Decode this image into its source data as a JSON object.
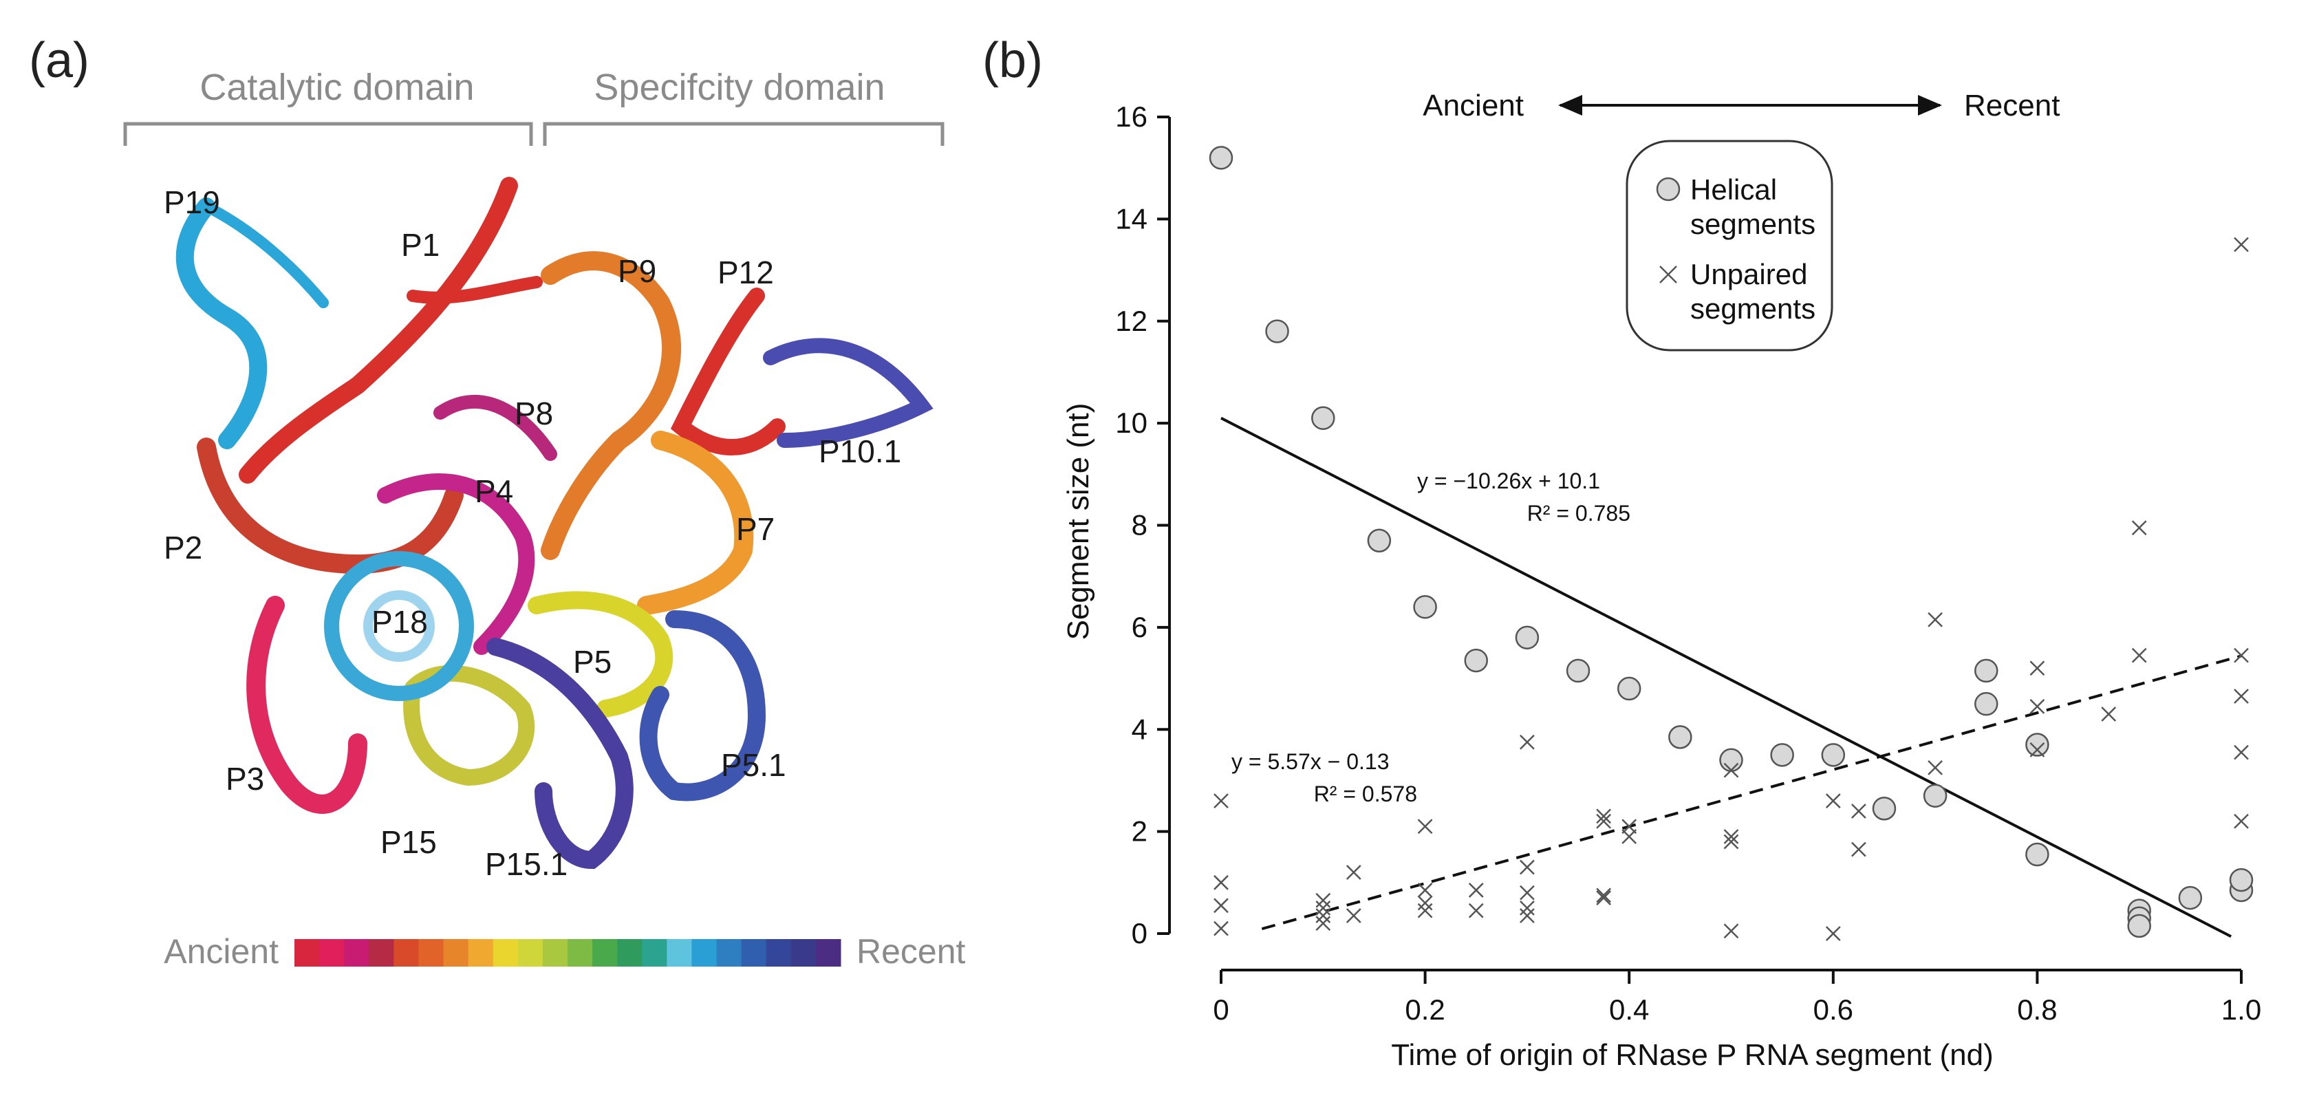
{
  "panel_a": {
    "label": "(a)",
    "domains": {
      "catalytic": "Catalytic domain",
      "specificity": "Specifcity domain"
    },
    "helix_labels": [
      "P19",
      "P1",
      "P9",
      "P12",
      "P8",
      "P10.1",
      "P4",
      "P2",
      "P7",
      "P18",
      "P5",
      "P3",
      "P5.1",
      "P15",
      "P15.1"
    ],
    "colorbar": {
      "left_label": "Ancient",
      "right_label": "Recent",
      "colors": [
        "#d7263d",
        "#e0205a",
        "#c81c73",
        "#b52a45",
        "#d94a2a",
        "#e2632a",
        "#e7852b",
        "#f0a830",
        "#ead52f",
        "#cfd63a",
        "#a9c840",
        "#7dbb45",
        "#49a94b",
        "#2f9c5e",
        "#2aa38f",
        "#5ec3dc",
        "#2a9fd6",
        "#2d7fc2",
        "#2f5fae",
        "#33469a",
        "#3a3a8a",
        "#4b2e83"
      ]
    },
    "helix_colors": {
      "P19": "#2aa6d9",
      "P1": "#d8302a",
      "P9": "#e27b2a",
      "P12": "#d8302a",
      "P8": "#d8302a",
      "P10.1": "#4b4cb0",
      "P4": "#c4258a",
      "P2": "#c9402f",
      "P7": "#ef9a2e",
      "P18": "#3aa8d6",
      "P5": "#d9d42c",
      "P3": "#e02a5f",
      "P5.1": "#3f56b0",
      "P15": "#c6c43a",
      "P15.1": "#4a3f9e"
    }
  },
  "panel_b": {
    "label": "(b)",
    "direction": {
      "left": "Ancient",
      "right": "Recent"
    },
    "legend": {
      "helical": [
        "Helical",
        "segments"
      ],
      "unpaired": [
        "Unpaired",
        "segments"
      ]
    },
    "eq_helical": [
      "y = −10.26x + 10.1",
      "R² = 0.785"
    ],
    "eq_unpaired": [
      "y = 5.57x − 0.13",
      "R² = 0.578"
    ]
  },
  "chart_data": {
    "type": "scatter",
    "title": "",
    "xlabel": "Time of origin of RNase P RNA  segment (nd)",
    "ylabel": "Segment size (nt)",
    "xlim": [
      0,
      1.0
    ],
    "ylim": [
      0,
      16
    ],
    "xticks": [
      "0",
      "0.2",
      "0.4",
      "0.6",
      "0.8",
      "1.0"
    ],
    "yticks": [
      "0",
      "2",
      "4",
      "6",
      "8",
      "10",
      "12",
      "14",
      "16"
    ],
    "series": [
      {
        "name": "Helical segments",
        "marker": "circle",
        "x": [
          0,
          0.055,
          0.1,
          0.155,
          0.2,
          0.25,
          0.3,
          0.35,
          0.4,
          0.45,
          0.5,
          0.55,
          0.6,
          0.65,
          0.7,
          0.75,
          0.75,
          0.8,
          0.8,
          0.9,
          0.9,
          0.9,
          0.95,
          1.0,
          1.0
        ],
        "y": [
          15.2,
          11.8,
          10.1,
          7.7,
          6.4,
          5.35,
          5.8,
          5.15,
          4.8,
          3.85,
          3.4,
          3.5,
          3.5,
          2.45,
          2.7,
          5.15,
          4.5,
          3.7,
          1.55,
          0.45,
          0.3,
          0.15,
          0.7,
          0.85,
          1.05
        ]
      },
      {
        "name": "Unpaired segments",
        "marker": "x",
        "x": [
          0,
          0,
          0,
          0,
          0.1,
          0.1,
          0.1,
          0.1,
          0.13,
          0.13,
          0.2,
          0.2,
          0.2,
          0.2,
          0.25,
          0.25,
          0.3,
          0.3,
          0.3,
          0.3,
          0.3,
          0.375,
          0.375,
          0.375,
          0.375,
          0.4,
          0.4,
          0.5,
          0.5,
          0.5,
          0.5,
          0.6,
          0.6,
          0.625,
          0.625,
          0.7,
          0.7,
          0.8,
          0.8,
          0.8,
          0.87,
          0.9,
          0.9,
          1.0,
          1.0,
          1.0,
          1.0,
          1.0
        ],
        "y": [
          2.6,
          1.0,
          0.55,
          0.1,
          0.65,
          0.5,
          0.35,
          0.2,
          1.2,
          0.35,
          2.1,
          0.85,
          0.6,
          0.45,
          0.85,
          0.45,
          3.75,
          1.3,
          0.8,
          0.5,
          0.35,
          2.3,
          0.75,
          0.7,
          2.2,
          2.1,
          1.9,
          3.2,
          1.9,
          1.8,
          0.05,
          2.6,
          0.0,
          2.4,
          1.65,
          6.15,
          3.25,
          5.2,
          4.45,
          3.6,
          4.3,
          7.95,
          5.45,
          13.5,
          5.45,
          4.65,
          3.55,
          2.2
        ]
      }
    ],
    "fits": [
      {
        "series": "Helical segments",
        "style": "solid",
        "slope": -10.26,
        "intercept": 10.1,
        "r2": 0.785,
        "x_range": [
          0,
          0.99
        ]
      },
      {
        "series": "Unpaired segments",
        "style": "dashed",
        "slope": 5.57,
        "intercept": -0.13,
        "r2": 0.578,
        "x_range": [
          0.04,
          1.0
        ]
      }
    ]
  }
}
